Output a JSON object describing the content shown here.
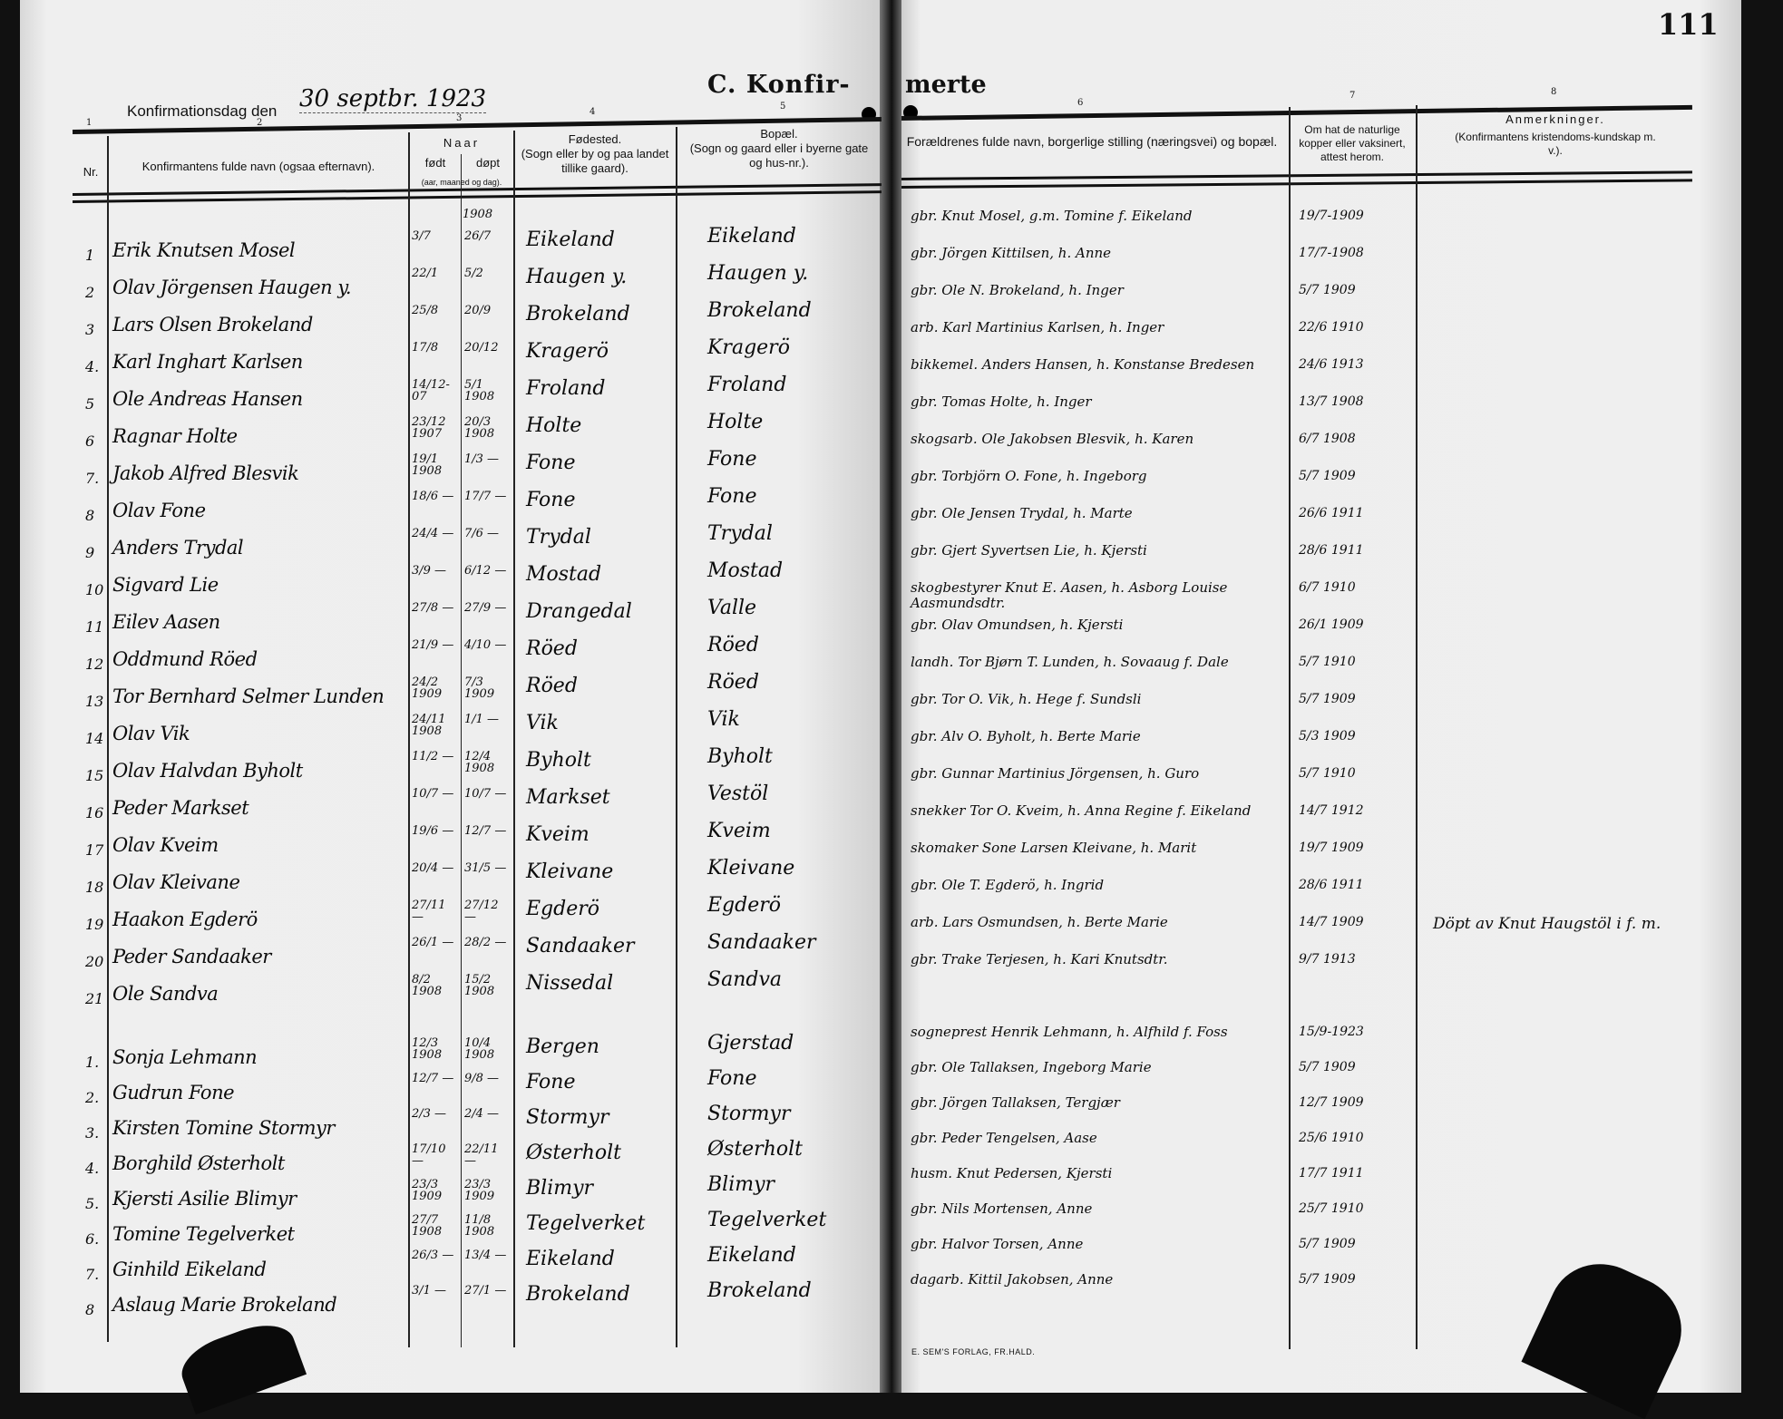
{
  "page_number": "111",
  "title_left": "C. Konfir-",
  "title_right": "merte",
  "confirmation_day_label": "Konfirmationsdag den",
  "confirmation_day_value": "30 septbr. 1923",
  "column_numbers": [
    "1",
    "2",
    "3",
    "4",
    "5",
    "6",
    "7",
    "8"
  ],
  "headers": {
    "nr": "Nr.",
    "name": "Konfirmantens fulde navn (ogsaa efternavn).",
    "naar": "Naar",
    "fodt": "født",
    "dopt": "døpt",
    "naar_sub": "(aar, maaned og dag).",
    "fodested": "Fødested.",
    "fodested_sub": "(Sogn eller by og paa landet tillike gaard).",
    "bopael": "Bopæl.",
    "bopael_sub": "(Sogn og gaard eller i byerne gate og hus-nr.).",
    "parents": "Forældrenes fulde navn, borgerlige stilling (næringsvei) og bopæl.",
    "vaccine": "Om hat de naturlige kopper eller vaksinert, attest herom.",
    "remarks": "Anmerkninger.",
    "remarks_sub": "(Konfirmantens kristendoms-kundskap m. v.)."
  },
  "year_note": "1908",
  "boys": [
    {
      "nr": "1",
      "name": "Erik Knutsen Mosel",
      "born": "3/7",
      "baptized": "26/7",
      "birthplace": "Eikeland",
      "residence": "Eikeland",
      "parents": "gbr. Knut Mosel, g.m. Tomine f. Eikeland",
      "vaccine": "19/7-1909"
    },
    {
      "nr": "2",
      "name": "Olav Jörgensen Haugen y.",
      "born": "22/1",
      "baptized": "5/2",
      "birthplace": "Haugen y.",
      "residence": "Haugen y.",
      "parents": "gbr. Jörgen Kittilsen, h. Anne",
      "vaccine": "17/7-1908"
    },
    {
      "nr": "3",
      "name": "Lars Olsen Brokeland",
      "born": "25/8",
      "baptized": "20/9",
      "birthplace": "Brokeland",
      "residence": "Brokeland",
      "parents": "gbr. Ole N. Brokeland, h. Inger",
      "vaccine": "5/7 1909"
    },
    {
      "nr": "4.",
      "name": "Karl Inghart Karlsen",
      "born": "17/8",
      "baptized": "20/12",
      "birthplace": "Kragerö",
      "residence": "Kragerö",
      "parents": "arb. Karl Martinius Karlsen, h. Inger",
      "vaccine": "22/6 1910"
    },
    {
      "nr": "5",
      "name": "Ole Andreas Hansen",
      "born": "14/12-07",
      "baptized": "5/1 1908",
      "birthplace": "Froland",
      "residence": "Froland",
      "parents": "bikkemel. Anders Hansen, h. Konstanse Bredesen",
      "vaccine": "24/6 1913"
    },
    {
      "nr": "6",
      "name": "Ragnar Holte",
      "born": "23/12 1907",
      "baptized": "20/3 1908",
      "birthplace": "Holte",
      "residence": "Holte",
      "parents": "gbr. Tomas Holte, h. Inger",
      "vaccine": "13/7 1908"
    },
    {
      "nr": "7.",
      "name": "Jakob Alfred Blesvik",
      "born": "19/1 1908",
      "baptized": "1/3 —",
      "birthplace": "Fone",
      "residence": "Fone",
      "parents": "skogsarb. Ole Jakobsen Blesvik, h. Karen",
      "vaccine": "6/7 1908"
    },
    {
      "nr": "8",
      "name": "Olav Fone",
      "born": "18/6 —",
      "baptized": "17/7 —",
      "birthplace": "Fone",
      "residence": "Fone",
      "parents": "gbr. Torbjörn O. Fone, h. Ingeborg",
      "vaccine": "5/7 1909"
    },
    {
      "nr": "9",
      "name": "Anders Trydal",
      "born": "24/4 —",
      "baptized": "7/6 —",
      "birthplace": "Trydal",
      "residence": "Trydal",
      "parents": "gbr. Ole Jensen Trydal, h. Marte",
      "vaccine": "26/6 1911"
    },
    {
      "nr": "10",
      "name": "Sigvard Lie",
      "born": "3/9 —",
      "baptized": "6/12 —",
      "birthplace": "Mostad",
      "residence": "Mostad",
      "parents": "gbr. Gjert Syvertsen Lie, h. Kjersti",
      "vaccine": "28/6 1911"
    },
    {
      "nr": "11",
      "name": "Eilev Aasen",
      "born": "27/8 —",
      "baptized": "27/9 —",
      "birthplace": "Drangedal",
      "residence": "Valle",
      "parents": "skogbestyrer Knut E. Aasen, h. Asborg Louise Aasmundsdtr.",
      "vaccine": "6/7 1910"
    },
    {
      "nr": "12",
      "name": "Oddmund Röed",
      "born": "21/9 —",
      "baptized": "4/10 —",
      "birthplace": "Röed",
      "residence": "Röed",
      "parents": "gbr. Olav Omundsen, h. Kjersti",
      "vaccine": "26/1 1909"
    },
    {
      "nr": "13",
      "name": "Tor Bernhard Selmer Lunden",
      "born": "24/2 1909",
      "baptized": "7/3 1909",
      "birthplace": "Röed",
      "residence": "Röed",
      "parents": "landh. Tor Bjørn T. Lunden, h. Sovaaug f. Dale",
      "vaccine": "5/7 1910"
    },
    {
      "nr": "14",
      "name": "Olav Vik",
      "born": "24/11 1908",
      "baptized": "1/1 —",
      "birthplace": "Vik",
      "residence": "Vik",
      "parents": "gbr. Tor O. Vik, h. Hege f. Sundsli",
      "vaccine": "5/7 1909"
    },
    {
      "nr": "15",
      "name": "Olav Halvdan Byholt",
      "born": "11/2 —",
      "baptized": "12/4 1908",
      "birthplace": "Byholt",
      "residence": "Byholt",
      "parents": "gbr. Alv O. Byholt, h. Berte Marie",
      "vaccine": "5/3 1909"
    },
    {
      "nr": "16",
      "name": "Peder Markset",
      "born": "10/7 —",
      "baptized": "10/7 —",
      "birthplace": "Markset",
      "residence": "Vestöl",
      "parents": "gbr. Gunnar Martinius Jörgensen, h. Guro",
      "vaccine": "5/7 1910"
    },
    {
      "nr": "17",
      "name": "Olav Kveim",
      "born": "19/6 —",
      "baptized": "12/7 —",
      "birthplace": "Kveim",
      "residence": "Kveim",
      "parents": "snekker Tor O. Kveim, h. Anna Regine f. Eikeland",
      "vaccine": "14/7 1912"
    },
    {
      "nr": "18",
      "name": "Olav Kleivane",
      "born": "20/4 —",
      "baptized": "31/5 —",
      "birthplace": "Kleivane",
      "residence": "Kleivane",
      "parents": "skomaker Sone Larsen Kleivane, h. Marit",
      "vaccine": "19/7 1909"
    },
    {
      "nr": "19",
      "name": "Haakon Egderö",
      "born": "27/11 —",
      "baptized": "27/12 —",
      "birthplace": "Egderö",
      "residence": "Egderö",
      "parents": "gbr. Ole T. Egderö, h. Ingrid",
      "vaccine": "28/6 1911"
    },
    {
      "nr": "20",
      "name": "Peder Sandaaker",
      "born": "26/1 —",
      "baptized": "28/2 —",
      "birthplace": "Sandaaker",
      "residence": "Sandaaker",
      "parents": "arb. Lars Osmundsen, h. Berte Marie",
      "vaccine": "14/7 1909",
      "remark": "Döpt av Knut Haugstöl i f. m."
    },
    {
      "nr": "21",
      "name": "Ole Sandva",
      "born": "8/2 1908",
      "baptized": "15/2 1908",
      "birthplace": "Nissedal",
      "residence": "Sandva",
      "parents": "gbr. Trake Terjesen, h. Kari Knutsdtr.",
      "vaccine": "9/7 1913"
    }
  ],
  "girls": [
    {
      "nr": "1.",
      "name": "Sonja Lehmann",
      "born": "12/3 1908",
      "baptized": "10/4 1908",
      "birthplace": "Bergen",
      "residence": "Gjerstad",
      "parents": "sogneprest Henrik Lehmann, h. Alfhild f. Foss",
      "vaccine": "15/9-1923"
    },
    {
      "nr": "2.",
      "name": "Gudrun Fone",
      "born": "12/7 —",
      "baptized": "9/8 —",
      "birthplace": "Fone",
      "residence": "Fone",
      "parents": "gbr. Ole Tallaksen, Ingeborg Marie",
      "vaccine": "5/7 1909"
    },
    {
      "nr": "3.",
      "name": "Kirsten Tomine Stormyr",
      "born": "2/3 —",
      "baptized": "2/4 —",
      "birthplace": "Stormyr",
      "residence": "Stormyr",
      "parents": "gbr. Jörgen Tallaksen, Tergjær",
      "vaccine": "12/7 1909"
    },
    {
      "nr": "4.",
      "name": "Borghild Østerholt",
      "born": "17/10 —",
      "baptized": "22/11 —",
      "birthplace": "Østerholt",
      "residence": "Østerholt",
      "parents": "gbr. Peder Tengelsen, Aase",
      "vaccine": "25/6 1910"
    },
    {
      "nr": "5.",
      "name": "Kjersti Asilie Blimyr",
      "born": "23/3 1909",
      "baptized": "23/3 1909",
      "birthplace": "Blimyr",
      "residence": "Blimyr",
      "parents": "husm. Knut Pedersen, Kjersti",
      "vaccine": "17/7 1911"
    },
    {
      "nr": "6.",
      "name": "Tomine Tegelverket",
      "born": "27/7 1908",
      "baptized": "11/8 1908",
      "birthplace": "Tegelverket",
      "residence": "Tegelverket",
      "parents": "gbr. Nils Mortensen, Anne",
      "vaccine": "25/7 1910"
    },
    {
      "nr": "7.",
      "name": "Ginhild Eikeland",
      "born": "26/3 —",
      "baptized": "13/4 —",
      "birthplace": "Eikeland",
      "residence": "Eikeland",
      "parents": "gbr. Halvor Torsen, Anne",
      "vaccine": "5/7 1909"
    },
    {
      "nr": "8",
      "name": "Aslaug Marie Brokeland",
      "born": "3/1 —",
      "baptized": "27/1 —",
      "birthplace": "Brokeland",
      "residence": "Brokeland",
      "parents": "dagarb. Kittil Jakobsen, Anne",
      "vaccine": "5/7 1909"
    }
  ],
  "imprint": "E. SEM'S FORLAG, FR.HALD."
}
